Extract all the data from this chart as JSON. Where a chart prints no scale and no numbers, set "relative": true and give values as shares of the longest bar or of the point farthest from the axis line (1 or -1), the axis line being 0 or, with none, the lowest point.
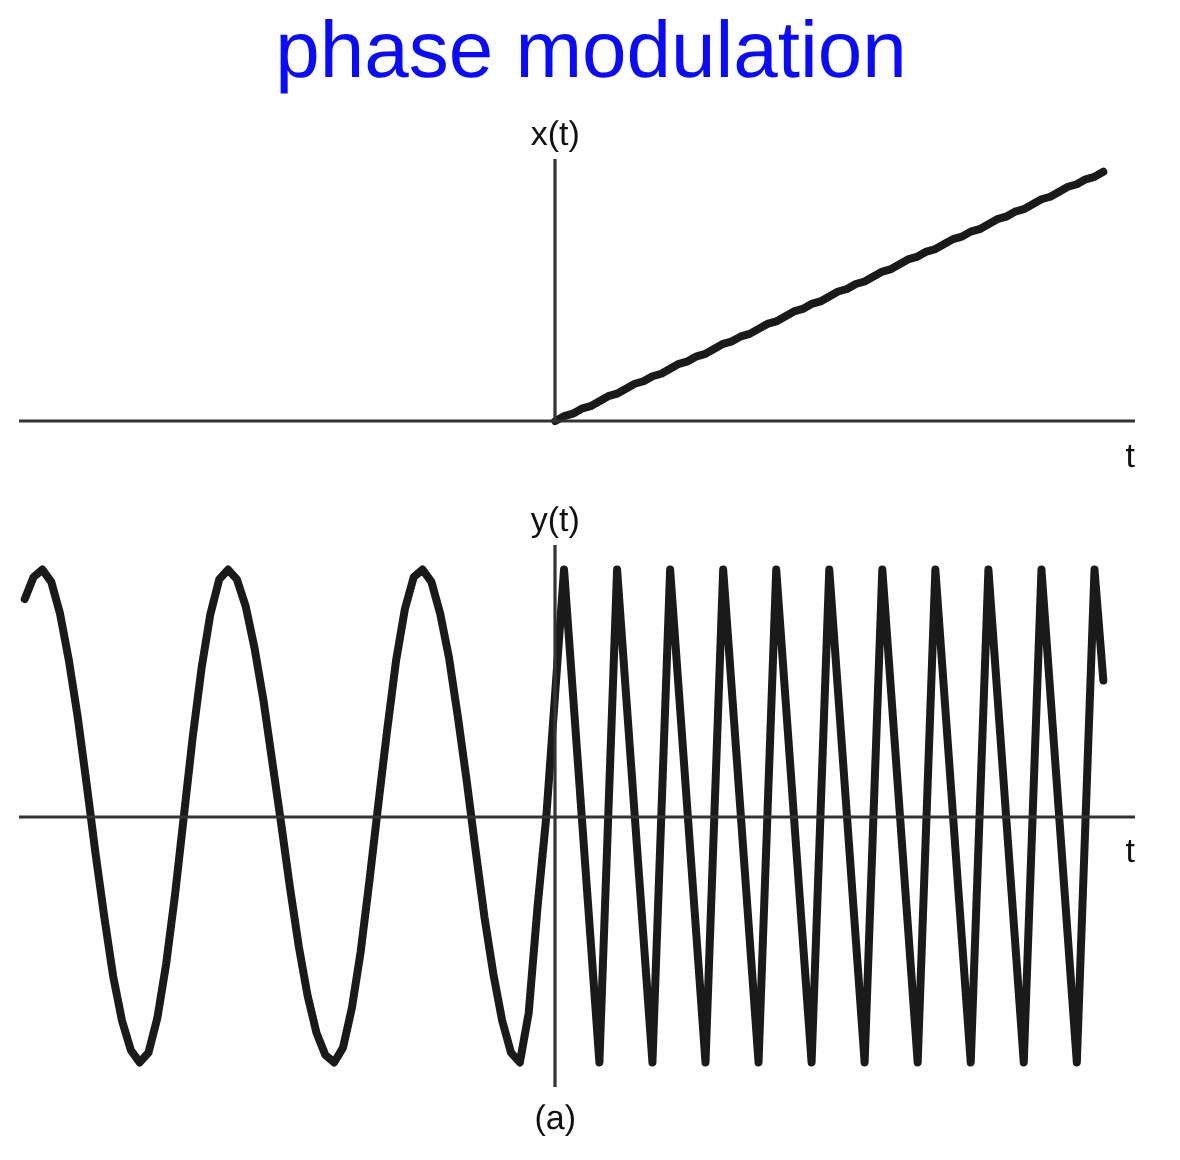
{
  "chart_data": [
    {
      "type": "line",
      "title": "phase modulation",
      "ylabel": "x(t)",
      "xlabel": "t",
      "relative": true,
      "color": "#1a1a1a",
      "categories": [
        null,
        null,
        null,
        null,
        null,
        null,
        null,
        null,
        null,
        null,
        null,
        null,
        null,
        null,
        null,
        null,
        null,
        null,
        null,
        null,
        null,
        null,
        null,
        null,
        null,
        null,
        null,
        null,
        null,
        null,
        null,
        null,
        null,
        null,
        null,
        null,
        null,
        null,
        null,
        null,
        null,
        null,
        null,
        null,
        null,
        null,
        null,
        null,
        null,
        null,
        null,
        null,
        null,
        null,
        null,
        null,
        null,
        null,
        null,
        null,
        null,
        null,
        null,
        null,
        null,
        null,
        null,
        null,
        null,
        null,
        null,
        null,
        null,
        null,
        null,
        null,
        null,
        null,
        null,
        null,
        null,
        null,
        null,
        null,
        null,
        null,
        null,
        null,
        null,
        null,
        null,
        null,
        null,
        null,
        null,
        null,
        null,
        null,
        null,
        null,
        null,
        null,
        null,
        null,
        null,
        null,
        null,
        null,
        null,
        null,
        null,
        null,
        null,
        null,
        null,
        null,
        null,
        null,
        null,
        null,
        null,
        null,
        null
      ],
      "values": [
        null,
        null,
        null,
        null,
        null,
        null,
        null,
        null,
        null,
        null,
        null,
        null,
        null,
        null,
        null,
        null,
        null,
        null,
        null,
        null,
        null,
        null,
        null,
        null,
        null,
        null,
        null,
        null,
        null,
        null,
        null,
        null,
        null,
        null,
        null,
        null,
        null,
        null,
        null,
        null,
        null,
        null,
        null,
        null,
        null,
        null,
        null,
        null,
        null,
        null,
        null,
        null,
        null,
        null,
        null,
        null,
        null,
        null,
        null,
        null,
        0,
        0.02,
        0.03,
        0.05,
        0.06,
        0.08,
        0.1,
        0.11,
        0.13,
        0.15,
        0.16,
        0.18,
        0.19,
        0.21,
        0.23,
        0.24,
        0.26,
        0.27,
        0.29,
        0.31,
        0.32,
        0.34,
        0.35,
        0.37,
        0.39,
        0.4,
        0.42,
        0.44,
        0.45,
        0.47,
        0.48,
        0.5,
        0.52,
        0.53,
        0.55,
        0.56,
        0.58,
        0.6,
        0.61,
        0.63,
        0.65,
        0.66,
        0.68,
        0.69,
        0.71,
        0.73,
        0.74,
        0.76,
        0.77,
        0.79,
        0.81,
        0.82,
        0.84,
        0.85,
        0.87,
        0.89,
        0.9,
        0.92,
        0.94,
        0.95,
        0.97,
        0.98,
        1
      ]
    },
    {
      "type": "line",
      "ylabel": "y(t)",
      "xlabel": "t",
      "annotations": [
        "(a)"
      ],
      "relative": true,
      "color": "#1a1a1a",
      "categories": [
        null,
        null,
        null,
        null,
        null,
        null,
        null,
        null,
        null,
        null,
        null,
        null,
        null,
        null,
        null,
        null,
        null,
        null,
        null,
        null,
        null,
        null,
        null,
        null,
        null,
        null,
        null,
        null,
        null,
        null,
        null,
        null,
        null,
        null,
        null,
        null,
        null,
        null,
        null,
        null,
        null,
        null,
        null,
        null,
        null,
        null,
        null,
        null,
        null,
        null,
        null,
        null,
        null,
        null,
        null,
        null,
        null,
        null,
        null,
        null,
        null,
        null,
        null,
        null,
        null,
        null,
        null,
        null,
        null,
        null,
        null,
        null,
        null,
        null,
        null,
        null,
        null,
        null,
        null,
        null,
        null,
        null,
        null,
        null,
        null,
        null,
        null,
        null,
        null,
        null,
        null,
        null,
        null,
        null,
        null,
        null,
        null,
        null,
        null,
        null,
        null,
        null,
        null,
        null,
        null,
        null,
        null,
        null,
        null,
        null,
        null,
        null,
        null,
        null,
        null,
        null,
        null,
        null,
        null,
        null,
        null,
        null,
        null
      ],
      "values": [
        0.88,
        0.97,
        1.0,
        0.95,
        0.82,
        0.63,
        0.4,
        0.13,
        -0.15,
        -0.41,
        -0.65,
        -0.83,
        -0.95,
        -1.0,
        -0.96,
        -0.82,
        -0.6,
        -0.32,
        0,
        0.32,
        0.6,
        0.82,
        0.96,
        1.0,
        0.96,
        0.85,
        0.68,
        0.47,
        0.22,
        -0.03,
        -0.29,
        -0.53,
        -0.73,
        -0.88,
        -0.97,
        -1.0,
        -0.94,
        -0.78,
        -0.55,
        -0.26,
        0.05,
        0.35,
        0.63,
        0.84,
        0.97,
        1.0,
        0.95,
        0.82,
        0.64,
        0.4,
        0.14,
        -0.14,
        -0.41,
        -0.64,
        -0.83,
        -0.96,
        -1.0,
        -0.8,
        -0.37,
        0,
        0.5,
        1,
        0.5,
        0,
        -0.5,
        -1,
        0,
        1,
        0.5,
        0,
        -0.5,
        -1,
        0,
        1,
        0.5,
        0,
        -0.5,
        -1,
        0,
        1,
        0.5,
        0,
        -0.5,
        -1,
        0,
        1,
        0.5,
        0,
        -0.5,
        -1,
        0,
        1,
        0.5,
        0,
        -0.5,
        -1,
        0,
        1,
        0.5,
        0,
        -0.5,
        -1,
        0,
        1,
        0.5,
        0,
        -0.5,
        -1,
        0,
        1,
        0.5,
        0,
        -0.5,
        -1,
        0,
        1,
        0.5,
        0,
        -0.5,
        -1,
        0,
        1,
        0.55
      ]
    }
  ]
}
